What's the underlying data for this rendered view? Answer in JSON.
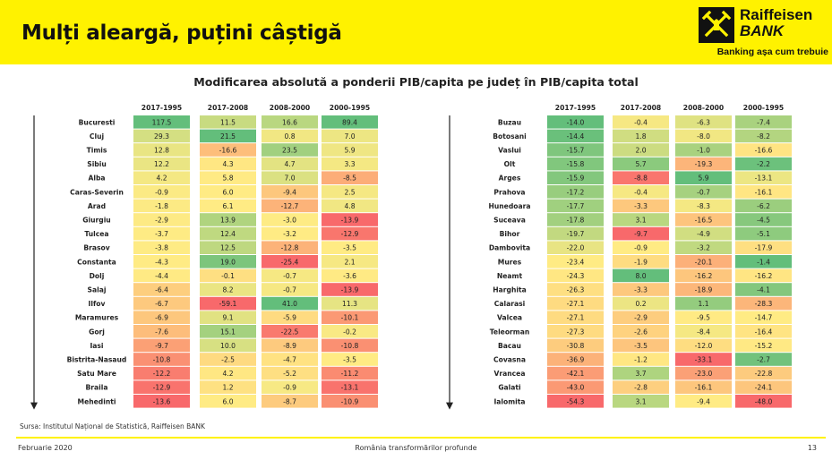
{
  "header": {
    "title": "Mulți aleargă, puțini câștigă",
    "brand_name": "Raiffeisen",
    "brand_sub": "BANK",
    "tagline": "Banking așa cum trebuie",
    "bar_color": "#fff200"
  },
  "chart_title": "Modificarea absolută a ponderii PIB/capita pe județ în PIB/capita total",
  "chart_data": {
    "type": "table",
    "title": "Modificarea absolută a ponderii PIB/capita pe județ în PIB/capita total",
    "columns": [
      "2017-1995",
      "2017-2008",
      "2008-2000",
      "2000-1995"
    ],
    "color_scale": {
      "low": "#f8696b",
      "mid": "#ffeb84",
      "high": "#63be7b"
    },
    "tables": [
      {
        "rows": [
          {
            "label": "Bucuresti",
            "values": [
              117.5,
              11.5,
              16.6,
              89.4
            ]
          },
          {
            "label": "Cluj",
            "values": [
              29.3,
              21.5,
              0.8,
              7.0
            ]
          },
          {
            "label": "Timis",
            "values": [
              12.8,
              -16.6,
              23.5,
              5.9
            ]
          },
          {
            "label": "Sibiu",
            "values": [
              12.2,
              4.3,
              4.7,
              3.3
            ]
          },
          {
            "label": "Alba",
            "values": [
              4.2,
              5.8,
              7.0,
              -8.5
            ]
          },
          {
            "label": "Caras-Severin",
            "values": [
              -0.9,
              6.0,
              -9.4,
              2.5
            ]
          },
          {
            "label": "Arad",
            "values": [
              -1.8,
              6.1,
              -12.7,
              4.8
            ]
          },
          {
            "label": "Giurgiu",
            "values": [
              -2.9,
              13.9,
              -3.0,
              -13.9
            ]
          },
          {
            "label": "Tulcea",
            "values": [
              -3.7,
              12.4,
              -3.2,
              -12.9
            ]
          },
          {
            "label": "Brasov",
            "values": [
              -3.8,
              12.5,
              -12.8,
              -3.5
            ]
          },
          {
            "label": "Constanta",
            "values": [
              -4.3,
              19.0,
              -25.4,
              2.1
            ]
          },
          {
            "label": "Dolj",
            "values": [
              -4.4,
              -0.1,
              -0.7,
              -3.6
            ]
          },
          {
            "label": "Salaj",
            "values": [
              -6.4,
              8.2,
              -0.7,
              -13.9
            ]
          },
          {
            "label": "Ilfov",
            "values": [
              -6.7,
              -59.1,
              41.0,
              11.3
            ]
          },
          {
            "label": "Maramures",
            "values": [
              -6.9,
              9.1,
              -5.9,
              -10.1
            ]
          },
          {
            "label": "Gorj",
            "values": [
              -7.6,
              15.1,
              -22.5,
              -0.2
            ]
          },
          {
            "label": "Iasi",
            "values": [
              -9.7,
              10.0,
              -8.9,
              -10.8
            ]
          },
          {
            "label": "Bistrita-Nasaud",
            "values": [
              -10.8,
              -2.5,
              -4.7,
              -3.5
            ]
          },
          {
            "label": "Satu Mare",
            "values": [
              -12.2,
              4.2,
              -5.2,
              -11.2
            ]
          },
          {
            "label": "Braila",
            "values": [
              -12.9,
              1.2,
              -0.9,
              -13.1
            ]
          },
          {
            "label": "Mehedinti",
            "values": [
              -13.6,
              6.0,
              -8.7,
              -10.9
            ]
          }
        ]
      },
      {
        "rows": [
          {
            "label": "Buzau",
            "values": [
              -14.0,
              -0.4,
              -6.3,
              -7.4
            ]
          },
          {
            "label": "Botosani",
            "values": [
              -14.4,
              1.8,
              -8.0,
              -8.2
            ]
          },
          {
            "label": "Vaslui",
            "values": [
              -15.7,
              2.0,
              -1.0,
              -16.6
            ]
          },
          {
            "label": "Olt",
            "values": [
              -15.8,
              5.7,
              -19.3,
              -2.2
            ]
          },
          {
            "label": "Arges",
            "values": [
              -15.9,
              -8.8,
              5.9,
              -13.1
            ]
          },
          {
            "label": "Prahova",
            "values": [
              -17.2,
              -0.4,
              -0.7,
              -16.1
            ]
          },
          {
            "label": "Hunedoara",
            "values": [
              -17.7,
              -3.3,
              -8.3,
              -6.2
            ]
          },
          {
            "label": "Suceava",
            "values": [
              -17.8,
              3.1,
              -16.5,
              -4.5
            ]
          },
          {
            "label": "Bihor",
            "values": [
              -19.7,
              -9.7,
              -4.9,
              -5.1
            ]
          },
          {
            "label": "Dambovita",
            "values": [
              -22.0,
              -0.9,
              -3.2,
              -17.9
            ]
          },
          {
            "label": "Mures",
            "values": [
              -23.4,
              -1.9,
              -20.1,
              -1.4
            ]
          },
          {
            "label": "Neamt",
            "values": [
              -24.3,
              8.0,
              -16.2,
              -16.2
            ]
          },
          {
            "label": "Harghita",
            "values": [
              -26.3,
              -3.3,
              -18.9,
              -4.1
            ]
          },
          {
            "label": "Calarasi",
            "values": [
              -27.1,
              0.2,
              1.1,
              -28.3
            ]
          },
          {
            "label": "Valcea",
            "values": [
              -27.1,
              -2.9,
              -9.5,
              -14.7
            ]
          },
          {
            "label": "Teleorman",
            "values": [
              -27.3,
              -2.6,
              -8.4,
              -16.4
            ]
          },
          {
            "label": "Bacau",
            "values": [
              -30.8,
              -3.5,
              -12.0,
              -15.2
            ]
          },
          {
            "label": "Covasna",
            "values": [
              -36.9,
              -1.2,
              -33.1,
              -2.7
            ]
          },
          {
            "label": "Vrancea",
            "values": [
              -42.1,
              3.7,
              -23.0,
              -22.8
            ]
          },
          {
            "label": "Galati",
            "values": [
              -43.0,
              -2.8,
              -16.1,
              -24.1
            ]
          },
          {
            "label": "Ialomita",
            "values": [
              -54.3,
              3.1,
              -9.4,
              -48.0
            ]
          }
        ]
      }
    ]
  },
  "source": "Sursa: Institutul Național de Statistică, Raiffeisen BANK",
  "footer": {
    "date": "Februarie 2020",
    "center": "România transformărilor profunde",
    "page": "13"
  }
}
